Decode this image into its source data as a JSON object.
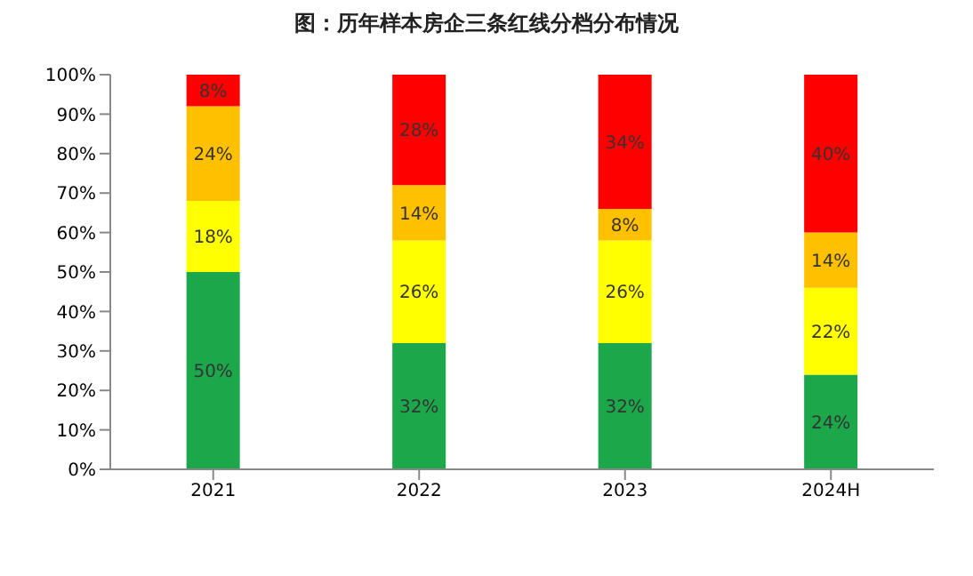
{
  "chart_data": {
    "type": "bar",
    "title": "图：历年样本房企三条红线分档分布情况",
    "stacked": true,
    "categories": [
      "2021",
      "2022",
      "2023",
      "2024H"
    ],
    "series": [
      {
        "color": "#1ba74a",
        "values": [
          50,
          32,
          32,
          24
        ],
        "value_labels": [
          "50%",
          "32%",
          "32%",
          "24%"
        ]
      },
      {
        "color": "#ffff00",
        "values": [
          18,
          26,
          26,
          22
        ],
        "value_labels": [
          "18%",
          "26%",
          "26%",
          "22%"
        ]
      },
      {
        "color": "#ffc000",
        "values": [
          24,
          14,
          8,
          14
        ],
        "value_labels": [
          "24%",
          "14%",
          "8%",
          "14%"
        ]
      },
      {
        "color": "#ff0000",
        "values": [
          8,
          28,
          34,
          40
        ],
        "value_labels": [
          "8%",
          "28%",
          "34%",
          "40%"
        ]
      }
    ],
    "ylim": [
      0,
      100
    ],
    "yticks": [
      {
        "value": 0,
        "label": "0%"
      },
      {
        "value": 10,
        "label": "10%"
      },
      {
        "value": 20,
        "label": "20%"
      },
      {
        "value": 30,
        "label": "30%"
      },
      {
        "value": 40,
        "label": "40%"
      },
      {
        "value": 50,
        "label": "50%"
      },
      {
        "value": 60,
        "label": "60%"
      },
      {
        "value": 70,
        "label": "70%"
      },
      {
        "value": 80,
        "label": "80%"
      },
      {
        "value": 90,
        "label": "90%"
      },
      {
        "value": 100,
        "label": "100%"
      }
    ],
    "grid": false,
    "legend": false
  }
}
